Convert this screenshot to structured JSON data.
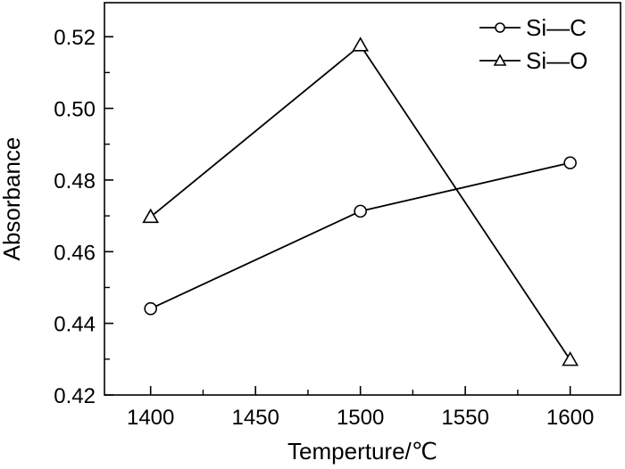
{
  "chart_data": {
    "type": "line",
    "xlabel": "Temperture/℃",
    "ylabel": "Absorbance",
    "xlim": [
      1378,
      1624
    ],
    "ylim": [
      0.42,
      0.5295
    ],
    "x_ticks": [
      "1400",
      "1450",
      "1500",
      "1550",
      "1600"
    ],
    "y_ticks": [
      "0.42",
      "0.44",
      "0.46",
      "0.48",
      "0.50",
      "0.52"
    ],
    "x": [
      1400,
      1500,
      1600
    ],
    "series": [
      {
        "name": "Si—C",
        "marker": "circle",
        "values": [
          0.4441,
          0.4713,
          0.4848
        ]
      },
      {
        "name": "Si—O",
        "marker": "triangle",
        "values": [
          0.4697,
          0.5176,
          0.4298
        ]
      }
    ],
    "legend_position": "top-right",
    "grid": false,
    "line_color": "#000000"
  }
}
